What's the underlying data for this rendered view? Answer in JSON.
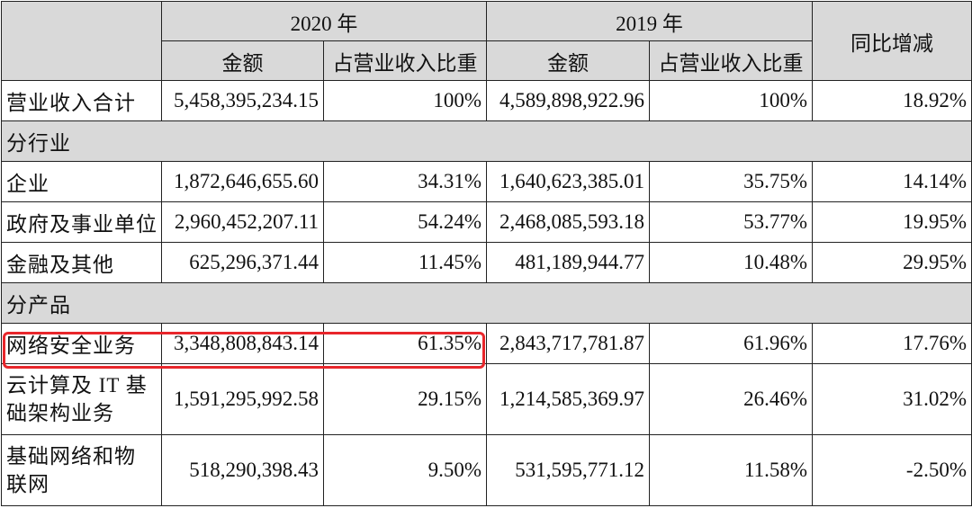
{
  "header": {
    "year_2020": "2020 年",
    "year_2019": "2019 年",
    "yoy": "同比增减",
    "amount": "金额",
    "share": "占营业收入比重"
  },
  "total": {
    "label": "营业收入合计",
    "amt2020": "5,458,395,234.15",
    "pct2020": "100%",
    "amt2019": "4,589,898,922.96",
    "pct2019": "100%",
    "yoy": "18.92%"
  },
  "sections": {
    "industry": "分行业",
    "product": "分产品"
  },
  "industry_rows": [
    {
      "label": "企业",
      "amt2020": "1,872,646,655.60",
      "pct2020": "34.31%",
      "amt2019": "1,640,623,385.01",
      "pct2019": "35.75%",
      "yoy": "14.14%"
    },
    {
      "label": "政府及事业单位",
      "amt2020": "2,960,452,207.11",
      "pct2020": "54.24%",
      "amt2019": "2,468,085,593.18",
      "pct2019": "53.77%",
      "yoy": "19.95%"
    },
    {
      "label": "金融及其他",
      "amt2020": "625,296,371.44",
      "pct2020": "11.45%",
      "amt2019": "481,189,944.77",
      "pct2019": "10.48%",
      "yoy": "29.95%"
    }
  ],
  "product_rows": [
    {
      "label": "网络安全业务",
      "amt2020": "3,348,808,843.14",
      "pct2020": "61.35%",
      "amt2019": "2,843,717,781.87",
      "pct2019": "61.96%",
      "yoy": "17.76%"
    },
    {
      "label": "云计算及 IT 基础架构业务",
      "amt2020": "1,591,295,992.58",
      "pct2020": "29.15%",
      "amt2019": "1,214,585,369.97",
      "pct2019": "26.46%",
      "yoy": "31.02%"
    },
    {
      "label": "基础网络和物联网",
      "amt2020": "518,290,398.43",
      "pct2020": "9.50%",
      "amt2019": "531,595,771.12",
      "pct2019": "11.58%",
      "yoy": "-2.50%"
    }
  ],
  "highlight_color": "#e8262b"
}
